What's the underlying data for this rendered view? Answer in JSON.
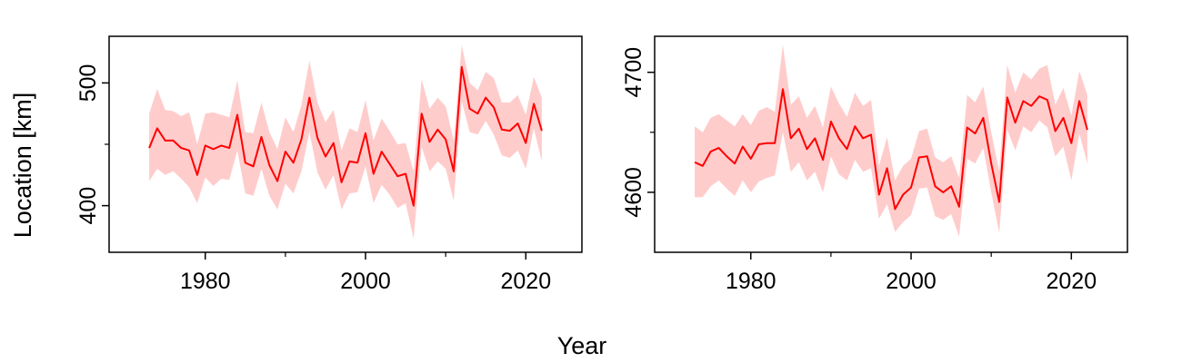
{
  "figure": {
    "xlabel": "Year",
    "ylabel": "Location [km]"
  },
  "colors": {
    "line": "#ff0000",
    "band": "#ffcccc",
    "axis": "#000000"
  },
  "chart_data": [
    {
      "type": "line",
      "xlim": [
        1968,
        2027
      ],
      "ylim": [
        362,
        538
      ],
      "x_major_ticks": [
        1980,
        2000,
        2020
      ],
      "x_minor_ticks": [
        1990,
        2010
      ],
      "y_major_ticks": [
        400,
        500
      ],
      "y_minor_ticks": [
        450
      ],
      "series": [
        {
          "x": [
            1973,
            1974,
            1975,
            1976,
            1977,
            1978,
            1979,
            1980,
            1981,
            1982,
            1983,
            1984,
            1985,
            1986,
            1987,
            1988,
            1989,
            1990,
            1991,
            1992,
            1993,
            1994,
            1995,
            1996,
            1997,
            1998,
            1999,
            2000,
            2001,
            2002,
            2003,
            2004,
            2005,
            2006,
            2007,
            2008,
            2009,
            2010,
            2011,
            2012,
            2013,
            2014,
            2015,
            2016,
            2017,
            2018,
            2019,
            2020,
            2021,
            2022
          ],
          "y": [
            447,
            463,
            453,
            453,
            447,
            445,
            425,
            449,
            446,
            449,
            447,
            474,
            435,
            432,
            456,
            433,
            420,
            444,
            435,
            454,
            488,
            455,
            440,
            451,
            419,
            436,
            435,
            459,
            426,
            444,
            434,
            424,
            426,
            400,
            475,
            452,
            462,
            454,
            428,
            513,
            479,
            475,
            488,
            480,
            462,
            461,
            467,
            451,
            483,
            461
          ],
          "lower": [
            420,
            430,
            425,
            428,
            422,
            415,
            402,
            423,
            416,
            422,
            421,
            445,
            410,
            408,
            430,
            408,
            397,
            418,
            410,
            428,
            460,
            427,
            413,
            425,
            397,
            410,
            411,
            432,
            402,
            417,
            409,
            398,
            402,
            373,
            448,
            428,
            436,
            430,
            404,
            485,
            460,
            458,
            469,
            458,
            441,
            439,
            445,
            430,
            463,
            436
          ],
          "upper": [
            475,
            495,
            478,
            477,
            473,
            476,
            450,
            475,
            476,
            474,
            472,
            502,
            460,
            459,
            484,
            460,
            446,
            472,
            460,
            482,
            518,
            484,
            468,
            478,
            445,
            463,
            460,
            486,
            453,
            471,
            461,
            450,
            451,
            428,
            503,
            479,
            488,
            481,
            453,
            531,
            500,
            494,
            509,
            504,
            484,
            484,
            490,
            474,
            505,
            488
          ]
        }
      ]
    },
    {
      "type": "line",
      "xlim": [
        1968,
        2027
      ],
      "ylim": [
        4550,
        4730
      ],
      "x_major_ticks": [
        1980,
        2000,
        2020
      ],
      "x_minor_ticks": [
        1990,
        2010
      ],
      "y_major_ticks": [
        4600,
        4700
      ],
      "y_minor_ticks": [
        4650
      ],
      "series": [
        {
          "x": [
            1973,
            1974,
            1975,
            1976,
            1977,
            1978,
            1979,
            1980,
            1981,
            1982,
            1983,
            1984,
            1985,
            1986,
            1987,
            1988,
            1989,
            1990,
            1991,
            1992,
            1993,
            1994,
            1995,
            1996,
            1997,
            1998,
            1999,
            2000,
            2001,
            2002,
            2003,
            2004,
            2005,
            2006,
            2007,
            2008,
            2009,
            2010,
            2011,
            2012,
            2013,
            2014,
            2015,
            2016,
            2017,
            2018,
            2019,
            2020,
            2021,
            2022
          ],
          "y": [
            4625,
            4622,
            4634,
            4637,
            4630,
            4624,
            4638,
            4628,
            4640,
            4641,
            4641,
            4686,
            4645,
            4653,
            4636,
            4645,
            4627,
            4659,
            4645,
            4636,
            4655,
            4645,
            4648,
            4598,
            4620,
            4586,
            4598,
            4604,
            4629,
            4630,
            4605,
            4600,
            4605,
            4588,
            4654,
            4649,
            4662,
            4624,
            4592,
            4679,
            4658,
            4676,
            4672,
            4680,
            4677,
            4651,
            4662,
            4641,
            4676,
            4652
          ],
          "lower": [
            4596,
            4596,
            4605,
            4610,
            4603,
            4597,
            4610,
            4600,
            4609,
            4612,
            4614,
            4650,
            4617,
            4625,
            4610,
            4617,
            4600,
            4630,
            4615,
            4610,
            4627,
            4617,
            4620,
            4578,
            4590,
            4567,
            4575,
            4581,
            4603,
            4604,
            4580,
            4577,
            4582,
            4563,
            4628,
            4624,
            4637,
            4600,
            4566,
            4652,
            4635,
            4655,
            4650,
            4660,
            4654,
            4630,
            4638,
            4610,
            4649,
            4624
          ],
          "upper": [
            4655,
            4650,
            4662,
            4665,
            4660,
            4655,
            4665,
            4656,
            4668,
            4671,
            4667,
            4723,
            4673,
            4680,
            4662,
            4672,
            4654,
            4688,
            4674,
            4663,
            4683,
            4672,
            4677,
            4622,
            4646,
            4610,
            4622,
            4628,
            4651,
            4653,
            4629,
            4625,
            4630,
            4612,
            4681,
            4675,
            4688,
            4650,
            4618,
            4706,
            4683,
            4700,
            4694,
            4703,
            4706,
            4673,
            4687,
            4664,
            4701,
            4681
          ]
        }
      ]
    }
  ]
}
